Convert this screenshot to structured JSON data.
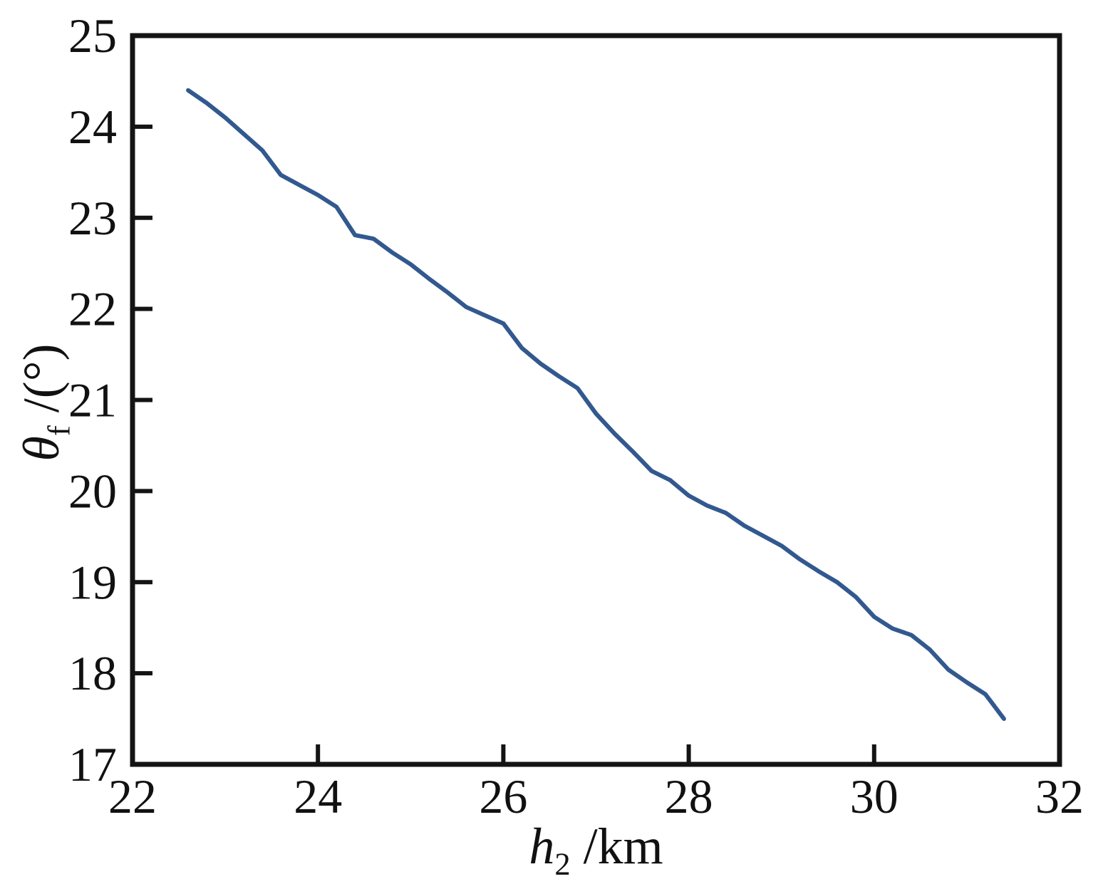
{
  "figure": {
    "background": "#ffffff"
  },
  "axes": {
    "xlabel": {
      "var": "h",
      "sub": "2",
      "unit": " /km"
    },
    "ylabel": {
      "var": "θ",
      "sub": "f",
      "unit": " /(°)"
    }
  },
  "chart_data": {
    "type": "line",
    "title": "",
    "xlabel": "h2 /km",
    "ylabel": "theta_f /(deg)",
    "xlim": [
      22,
      32
    ],
    "ylim": [
      17,
      25
    ],
    "xticks": [
      22,
      24,
      26,
      28,
      30,
      32
    ],
    "yticks": [
      17,
      18,
      19,
      20,
      21,
      22,
      23,
      24,
      25
    ],
    "grid": false,
    "legend": "none",
    "frame_color": "#141414",
    "line_color": "#32598f",
    "line_width": 6,
    "series": [
      {
        "name": "theta_f",
        "x": [
          22.6,
          22.8,
          23.0,
          23.2,
          23.4,
          23.6,
          23.8,
          24.0,
          24.2,
          24.4,
          24.6,
          24.8,
          25.0,
          25.2,
          25.4,
          25.6,
          25.8,
          26.0,
          26.2,
          26.4,
          26.6,
          26.8,
          27.0,
          27.2,
          27.4,
          27.6,
          27.8,
          28.0,
          28.2,
          28.4,
          28.6,
          28.8,
          29.0,
          29.2,
          29.4,
          29.6,
          29.8,
          30.0,
          30.2,
          30.4,
          30.6,
          30.8,
          31.0,
          31.2,
          31.4
        ],
        "y": [
          24.4,
          24.26,
          24.1,
          23.92,
          23.74,
          23.47,
          23.36,
          23.25,
          23.12,
          22.81,
          22.77,
          22.62,
          22.49,
          22.33,
          22.18,
          22.02,
          21.93,
          21.84,
          21.57,
          21.4,
          21.26,
          21.13,
          20.85,
          20.63,
          20.43,
          20.22,
          20.12,
          19.95,
          19.84,
          19.76,
          19.62,
          19.51,
          19.4,
          19.25,
          19.12,
          19.0,
          18.84,
          18.62,
          18.49,
          18.42,
          18.26,
          18.04,
          17.9,
          17.77,
          17.5
        ]
      }
    ]
  }
}
